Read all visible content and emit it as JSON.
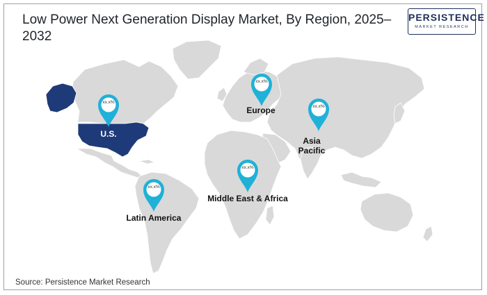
{
  "title": "Low Power Next Generation Display Market, By Region, 2025–2032",
  "logo": {
    "main": "PERSISTENCE",
    "sub": "MARKET RESEARCH"
  },
  "regions": [
    {
      "name": "U.S.",
      "value": "xx.x%"
    },
    {
      "name": "Europe",
      "value": "xx.x%"
    },
    {
      "name": "Asia Pacific",
      "value": "xx.x%"
    },
    {
      "name": "Middle East & Africa",
      "value": "xx.x%"
    },
    {
      "name": "Latin America",
      "value": "xx.x%"
    }
  ],
  "source": "Source: Persistence Market Research",
  "colors": {
    "land": "#d9d9d9",
    "highlight": "#1f3a78",
    "pin": "#1fb1d8",
    "pin_dark": "#138fb3",
    "text": "#1f2328"
  }
}
